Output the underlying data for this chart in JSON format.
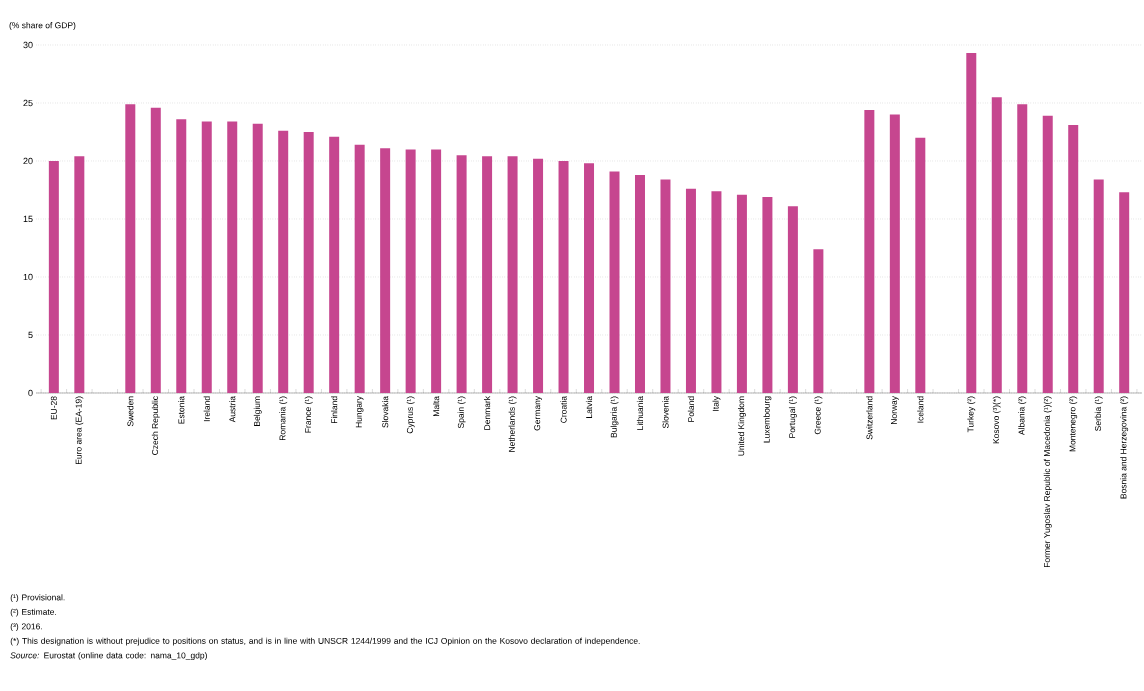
{
  "chart_data": {
    "type": "bar",
    "ylabel": "(% share of GDP)",
    "categories": [
      "EU-28",
      "Euro area (EA-19)",
      null,
      "Sweden",
      "Czech Republic",
      "Estonia",
      "Ireland",
      "Austria",
      "Belgium",
      "Romania (¹)",
      "France (¹)",
      "Finland",
      "Hungary",
      "Slovakia",
      "Cyprus (¹)",
      "Malta",
      "Spain (¹)",
      "Denmark",
      "Netherlands (¹)",
      "Germany",
      "Croatia",
      "Latvia",
      "Bulgaria (¹)",
      "Lithuania",
      "Slovenia",
      "Poland",
      "Italy",
      "United Kingdom",
      "Luxembourg",
      "Portugal (¹)",
      "Greece (¹)",
      null,
      "Switzerland",
      "Norway",
      "Iceland",
      null,
      "Turkey (²)",
      "Kosovo (³)(*)",
      "Albania (²)",
      "Former Yugoslav Republic of Macedonia (¹)(²)",
      "Montenegro (²)",
      "Serbia (¹)",
      "Bosnia and Herzegovina (²)"
    ],
    "values": [
      20.0,
      20.4,
      null,
      24.9,
      24.6,
      23.6,
      23.4,
      23.4,
      23.2,
      22.6,
      22.5,
      22.1,
      21.4,
      21.1,
      21.0,
      21.0,
      20.5,
      20.4,
      20.4,
      20.2,
      20.0,
      19.8,
      19.1,
      18.8,
      18.4,
      17.6,
      17.4,
      17.1,
      16.9,
      16.1,
      12.4,
      null,
      24.4,
      24.0,
      22.0,
      null,
      29.3,
      25.5,
      24.9,
      23.9,
      23.1,
      18.4,
      17.3
    ],
    "color": "#c6468f",
    "ylim": [
      0,
      30
    ],
    "yticks": [
      0,
      5,
      10,
      15,
      20,
      25,
      30
    ],
    "grid": "y",
    "annotations": [
      "(¹) Provisional.",
      "(²) Estimate.",
      "(³) 2016.",
      "(*) This designation is without prejudice to positions on status, and is in line with UNSCR 1244/1999 and the ICJ Opinion on the Kosovo declaration of independence.",
      "*Source:* Eurostat (online data code: nama_10_gdp)"
    ]
  }
}
